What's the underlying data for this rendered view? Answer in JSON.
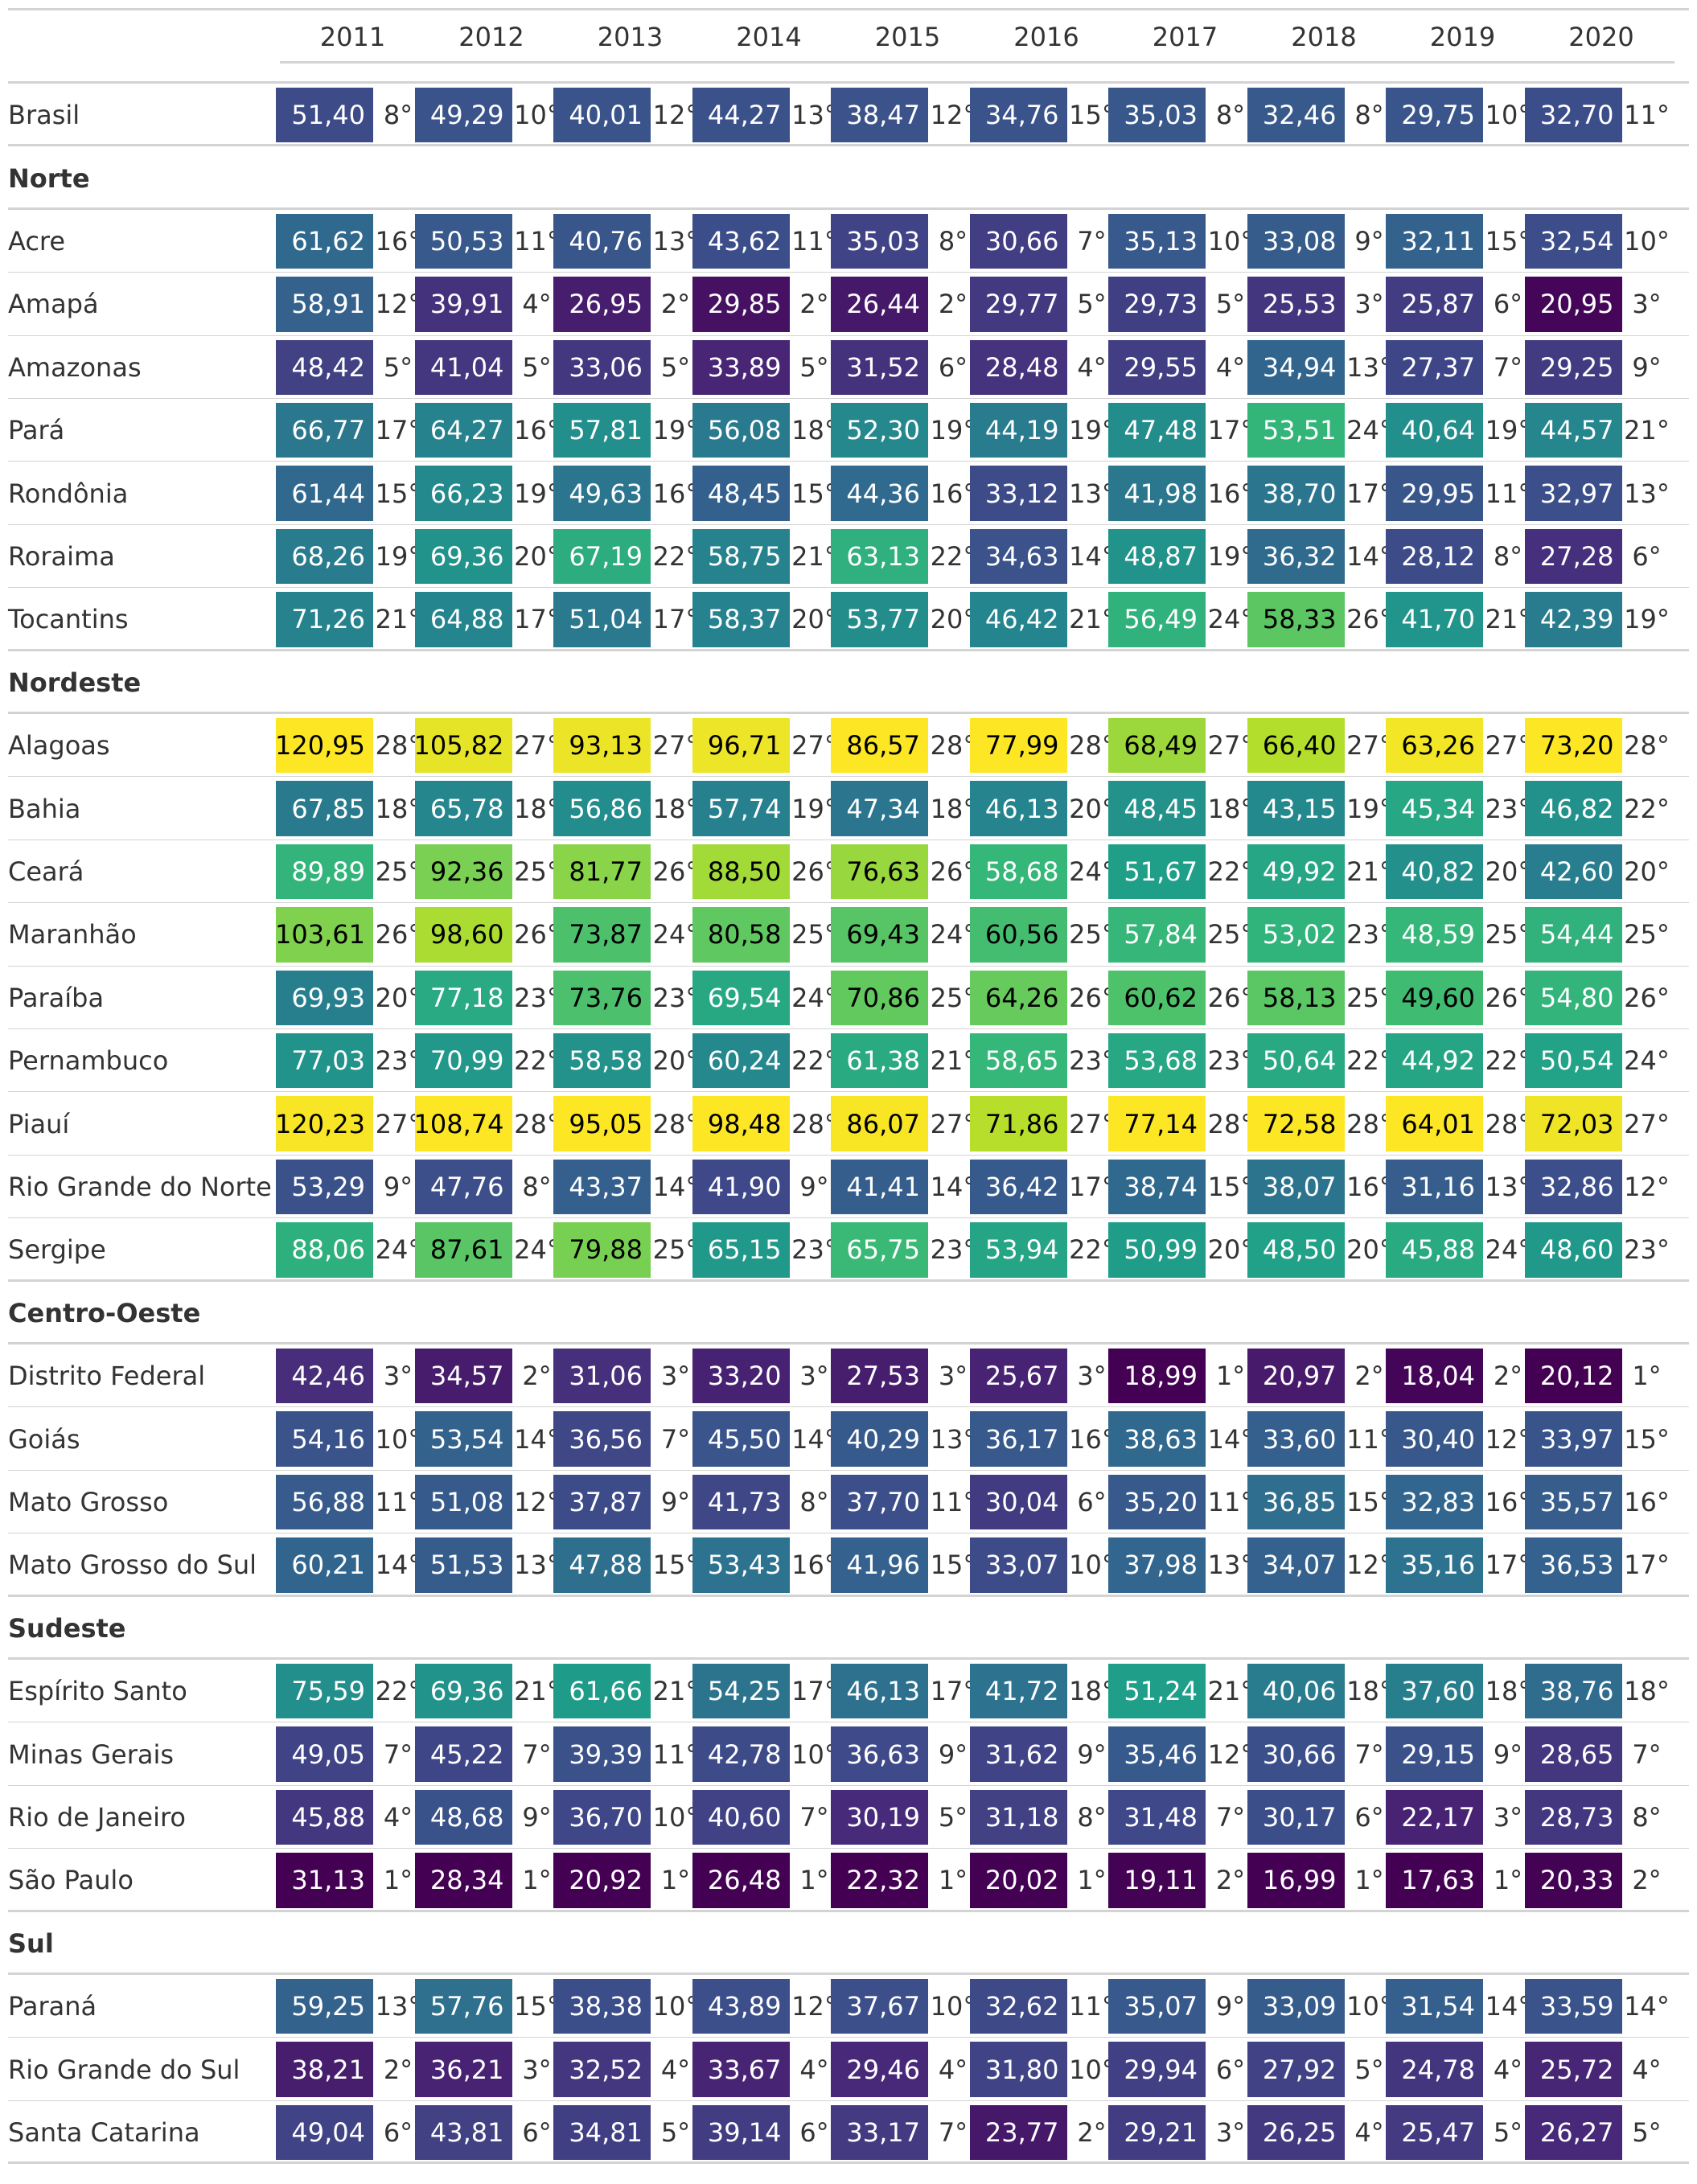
{
  "years": [
    "2011",
    "2012",
    "2013",
    "2014",
    "2015",
    "2016",
    "2017",
    "2018",
    "2019",
    "2020"
  ],
  "groups": [
    {
      "name": "",
      "rows": [
        {
          "label": "Brasil",
          "values": [
            "51,40",
            "49,29",
            "40,01",
            "44,27",
            "38,47",
            "34,76",
            "35,03",
            "32,46",
            "29,75",
            "32,70"
          ],
          "ranks": [
            "8°",
            "10°",
            "12°",
            "13°",
            "12°",
            "15°",
            "8°",
            "8°",
            "10°",
            "11°"
          ]
        }
      ]
    },
    {
      "name": "Norte",
      "rows": [
        {
          "label": "Acre",
          "values": [
            "61,62",
            "50,53",
            "40,76",
            "43,62",
            "35,03",
            "30,66",
            "35,13",
            "33,08",
            "32,11",
            "32,54"
          ],
          "ranks": [
            "16°",
            "11°",
            "13°",
            "11°",
            "8°",
            "7°",
            "10°",
            "9°",
            "15°",
            "10°"
          ]
        },
        {
          "label": "Amapá",
          "values": [
            "58,91",
            "39,91",
            "26,95",
            "29,85",
            "26,44",
            "29,77",
            "29,73",
            "25,53",
            "25,87",
            "20,95"
          ],
          "ranks": [
            "12°",
            "4°",
            "2°",
            "2°",
            "2°",
            "5°",
            "5°",
            "3°",
            "6°",
            "3°"
          ]
        },
        {
          "label": "Amazonas",
          "values": [
            "48,42",
            "41,04",
            "33,06",
            "33,89",
            "31,52",
            "28,48",
            "29,55",
            "34,94",
            "27,37",
            "29,25"
          ],
          "ranks": [
            "5°",
            "5°",
            "5°",
            "5°",
            "6°",
            "4°",
            "4°",
            "13°",
            "7°",
            "9°"
          ]
        },
        {
          "label": "Pará",
          "values": [
            "66,77",
            "64,27",
            "57,81",
            "56,08",
            "52,30",
            "44,19",
            "47,48",
            "53,51",
            "40,64",
            "44,57"
          ],
          "ranks": [
            "17°",
            "16°",
            "19°",
            "18°",
            "19°",
            "19°",
            "17°",
            "24°",
            "19°",
            "21°"
          ]
        },
        {
          "label": "Rondônia",
          "values": [
            "61,44",
            "66,23",
            "49,63",
            "48,45",
            "44,36",
            "33,12",
            "41,98",
            "38,70",
            "29,95",
            "32,97"
          ],
          "ranks": [
            "15°",
            "19°",
            "16°",
            "15°",
            "16°",
            "13°",
            "16°",
            "17°",
            "11°",
            "13°"
          ]
        },
        {
          "label": "Roraima",
          "values": [
            "68,26",
            "69,36",
            "67,19",
            "58,75",
            "63,13",
            "34,63",
            "48,87",
            "36,32",
            "28,12",
            "27,28"
          ],
          "ranks": [
            "19°",
            "20°",
            "22°",
            "21°",
            "22°",
            "14°",
            "19°",
            "14°",
            "8°",
            "6°"
          ]
        },
        {
          "label": "Tocantins",
          "values": [
            "71,26",
            "64,88",
            "51,04",
            "58,37",
            "53,77",
            "46,42",
            "56,49",
            "58,33",
            "41,70",
            "42,39"
          ],
          "ranks": [
            "21°",
            "17°",
            "17°",
            "20°",
            "20°",
            "21°",
            "24°",
            "26°",
            "21°",
            "19°"
          ]
        }
      ]
    },
    {
      "name": "Nordeste",
      "rows": [
        {
          "label": "Alagoas",
          "values": [
            "120,95",
            "105,82",
            "93,13",
            "96,71",
            "86,57",
            "77,99",
            "68,49",
            "66,40",
            "63,26",
            "73,20"
          ],
          "ranks": [
            "28°",
            "27°",
            "27°",
            "27°",
            "28°",
            "28°",
            "27°",
            "27°",
            "27°",
            "28°"
          ]
        },
        {
          "label": "Bahia",
          "values": [
            "67,85",
            "65,78",
            "56,86",
            "57,74",
            "47,34",
            "46,13",
            "48,45",
            "43,15",
            "45,34",
            "46,82"
          ],
          "ranks": [
            "18°",
            "18°",
            "18°",
            "19°",
            "18°",
            "20°",
            "18°",
            "19°",
            "23°",
            "22°"
          ]
        },
        {
          "label": "Ceará",
          "values": [
            "89,89",
            "92,36",
            "81,77",
            "88,50",
            "76,63",
            "58,68",
            "51,67",
            "49,92",
            "40,82",
            "42,60"
          ],
          "ranks": [
            "25°",
            "25°",
            "26°",
            "26°",
            "26°",
            "24°",
            "22°",
            "21°",
            "20°",
            "20°"
          ]
        },
        {
          "label": "Maranhão",
          "values": [
            "103,61",
            "98,60",
            "73,87",
            "80,58",
            "69,43",
            "60,56",
            "57,84",
            "53,02",
            "48,59",
            "54,44"
          ],
          "ranks": [
            "26°",
            "26°",
            "24°",
            "25°",
            "24°",
            "25°",
            "25°",
            "23°",
            "25°",
            "25°"
          ]
        },
        {
          "label": "Paraíba",
          "values": [
            "69,93",
            "77,18",
            "73,76",
            "69,54",
            "70,86",
            "64,26",
            "60,62",
            "58,13",
            "49,60",
            "54,80"
          ],
          "ranks": [
            "20°",
            "23°",
            "23°",
            "24°",
            "25°",
            "26°",
            "26°",
            "25°",
            "26°",
            "26°"
          ]
        },
        {
          "label": "Pernambuco",
          "values": [
            "77,03",
            "70,99",
            "58,58",
            "60,24",
            "61,38",
            "58,65",
            "53,68",
            "50,64",
            "44,92",
            "50,54"
          ],
          "ranks": [
            "23°",
            "22°",
            "20°",
            "22°",
            "21°",
            "23°",
            "23°",
            "22°",
            "22°",
            "24°"
          ]
        },
        {
          "label": "Piauí",
          "values": [
            "120,23",
            "108,74",
            "95,05",
            "98,48",
            "86,07",
            "71,86",
            "77,14",
            "72,58",
            "64,01",
            "72,03"
          ],
          "ranks": [
            "27°",
            "28°",
            "28°",
            "28°",
            "27°",
            "27°",
            "28°",
            "28°",
            "28°",
            "27°"
          ]
        },
        {
          "label": "Rio Grande do Norte",
          "values": [
            "53,29",
            "47,76",
            "43,37",
            "41,90",
            "41,41",
            "36,42",
            "38,74",
            "38,07",
            "31,16",
            "32,86"
          ],
          "ranks": [
            "9°",
            "8°",
            "14°",
            "9°",
            "14°",
            "17°",
            "15°",
            "16°",
            "13°",
            "12°"
          ]
        },
        {
          "label": "Sergipe",
          "values": [
            "88,06",
            "87,61",
            "79,88",
            "65,15",
            "65,75",
            "53,94",
            "50,99",
            "48,50",
            "45,88",
            "48,60"
          ],
          "ranks": [
            "24°",
            "24°",
            "25°",
            "23°",
            "23°",
            "22°",
            "20°",
            "20°",
            "24°",
            "23°"
          ]
        }
      ]
    },
    {
      "name": "Centro-Oeste",
      "rows": [
        {
          "label": "Distrito Federal",
          "values": [
            "42,46",
            "34,57",
            "31,06",
            "33,20",
            "27,53",
            "25,67",
            "18,99",
            "20,97",
            "18,04",
            "20,12"
          ],
          "ranks": [
            "3°",
            "2°",
            "3°",
            "3°",
            "3°",
            "3°",
            "1°",
            "2°",
            "2°",
            "1°"
          ]
        },
        {
          "label": "Goiás",
          "values": [
            "54,16",
            "53,54",
            "36,56",
            "45,50",
            "40,29",
            "36,17",
            "38,63",
            "33,60",
            "30,40",
            "33,97"
          ],
          "ranks": [
            "10°",
            "14°",
            "7°",
            "14°",
            "13°",
            "16°",
            "14°",
            "11°",
            "12°",
            "15°"
          ]
        },
        {
          "label": "Mato Grosso",
          "values": [
            "56,88",
            "51,08",
            "37,87",
            "41,73",
            "37,70",
            "30,04",
            "35,20",
            "36,85",
            "32,83",
            "35,57"
          ],
          "ranks": [
            "11°",
            "12°",
            "9°",
            "8°",
            "11°",
            "6°",
            "11°",
            "15°",
            "16°",
            "16°"
          ]
        },
        {
          "label": "Mato Grosso do Sul",
          "values": [
            "60,21",
            "51,53",
            "47,88",
            "53,43",
            "41,96",
            "33,07",
            "37,98",
            "34,07",
            "35,16",
            "36,53"
          ],
          "ranks": [
            "14°",
            "13°",
            "15°",
            "16°",
            "15°",
            "10°",
            "13°",
            "12°",
            "17°",
            "17°"
          ]
        }
      ]
    },
    {
      "name": "Sudeste",
      "rows": [
        {
          "label": "Espírito Santo",
          "values": [
            "75,59",
            "69,36",
            "61,66",
            "54,25",
            "46,13",
            "41,72",
            "51,24",
            "40,06",
            "37,60",
            "38,76"
          ],
          "ranks": [
            "22°",
            "21°",
            "21°",
            "17°",
            "17°",
            "18°",
            "21°",
            "18°",
            "18°",
            "18°"
          ]
        },
        {
          "label": "Minas Gerais",
          "values": [
            "49,05",
            "45,22",
            "39,39",
            "42,78",
            "36,63",
            "31,62",
            "35,46",
            "30,66",
            "29,15",
            "28,65"
          ],
          "ranks": [
            "7°",
            "7°",
            "11°",
            "10°",
            "9°",
            "9°",
            "12°",
            "7°",
            "9°",
            "7°"
          ]
        },
        {
          "label": "Rio de Janeiro",
          "values": [
            "45,88",
            "48,68",
            "36,70",
            "40,60",
            "30,19",
            "31,18",
            "31,48",
            "30,17",
            "22,17",
            "28,73"
          ],
          "ranks": [
            "4°",
            "9°",
            "10°",
            "7°",
            "5°",
            "8°",
            "7°",
            "6°",
            "3°",
            "8°"
          ]
        },
        {
          "label": "São Paulo",
          "values": [
            "31,13",
            "28,34",
            "20,92",
            "26,48",
            "22,32",
            "20,02",
            "19,11",
            "16,99",
            "17,63",
            "20,33"
          ],
          "ranks": [
            "1°",
            "1°",
            "1°",
            "1°",
            "1°",
            "1°",
            "2°",
            "1°",
            "1°",
            "2°"
          ]
        }
      ]
    },
    {
      "name": "Sul",
      "rows": [
        {
          "label": "Paraná",
          "values": [
            "59,25",
            "57,76",
            "38,38",
            "43,89",
            "37,67",
            "32,62",
            "35,07",
            "33,09",
            "31,54",
            "33,59"
          ],
          "ranks": [
            "13°",
            "15°",
            "10°",
            "12°",
            "10°",
            "11°",
            "9°",
            "10°",
            "14°",
            "14°"
          ]
        },
        {
          "label": "Rio Grande do Sul",
          "values": [
            "38,21",
            "36,21",
            "32,52",
            "33,67",
            "29,46",
            "31,80",
            "29,94",
            "27,92",
            "24,78",
            "25,72"
          ],
          "ranks": [
            "2°",
            "3°",
            "4°",
            "4°",
            "4°",
            "10°",
            "6°",
            "5°",
            "4°",
            "4°"
          ]
        },
        {
          "label": "Santa Catarina",
          "values": [
            "49,04",
            "43,81",
            "34,81",
            "39,14",
            "33,17",
            "23,77",
            "29,21",
            "26,25",
            "25,47",
            "26,27"
          ],
          "ranks": [
            "6°",
            "6°",
            "5°",
            "6°",
            "7°",
            "2°",
            "3°",
            "4°",
            "5°",
            "5°"
          ]
        }
      ]
    }
  ]
}
